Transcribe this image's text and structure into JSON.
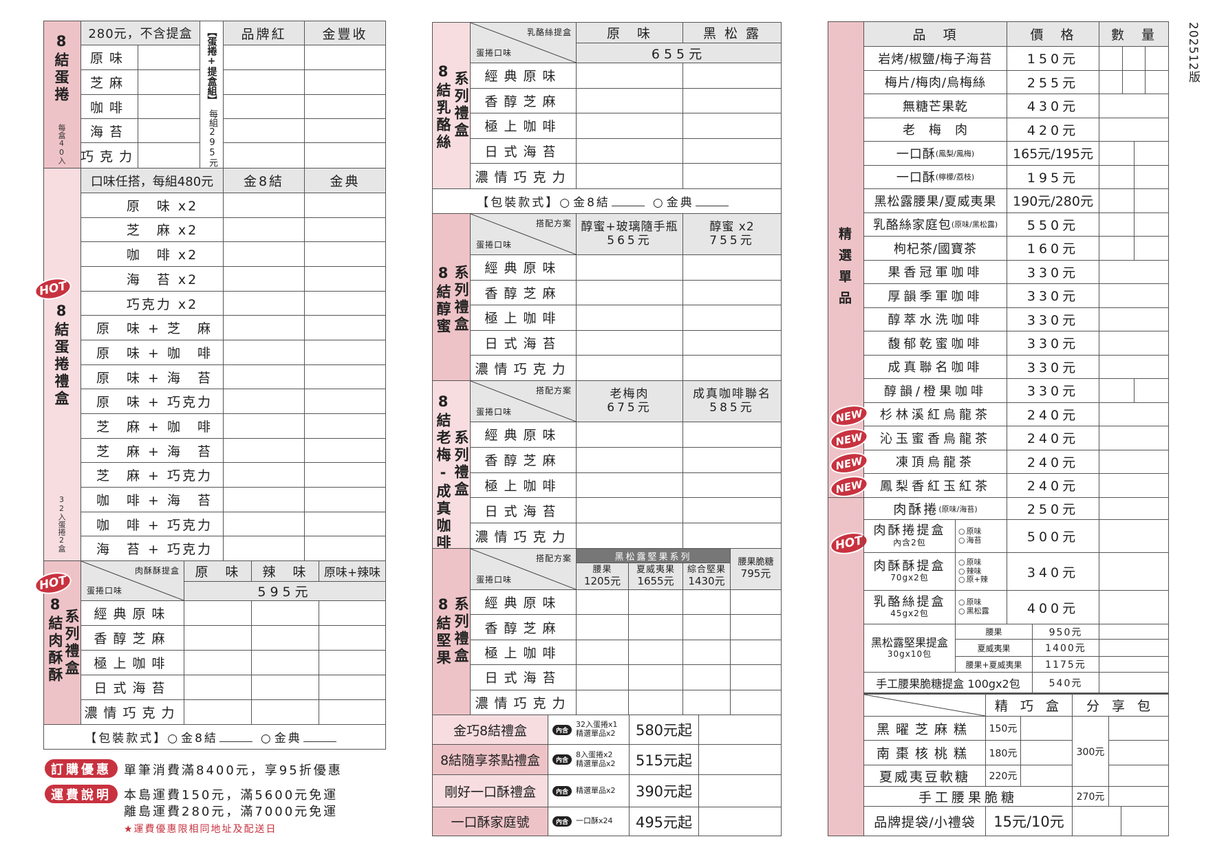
{
  "version": "202512版",
  "colors": {
    "pink_dark": "#eec3c7",
    "pink_light": "#f7dde0",
    "badge_red": "#c8323f",
    "header_grey": "#e6e6e6"
  },
  "eggroll": {
    "label": "8結蛋捲",
    "sub": "每盒40入",
    "price_note": "280元，不含提盒",
    "set_note": "【蛋捲+提盒組】",
    "set_price": "每組295元",
    "columns": [
      "品牌紅",
      "金豐收"
    ],
    "flavors": [
      "原味",
      "芝麻",
      "咖啡",
      "海苔",
      "巧克力"
    ]
  },
  "eggroll_giftbox": {
    "badge": "HOT",
    "label": "8結蛋捲禮盒",
    "sub": "32入蛋捲2盒",
    "header": "口味任搭，每組480元",
    "columns": [
      "金8結",
      "金典"
    ],
    "rows": [
      "原　味 x2",
      "芝　麻 x2",
      "咖　啡 x2",
      "海　苔 x2",
      "巧克力 x2",
      "原　味 + 芝　麻",
      "原　味 + 咖　啡",
      "原　味 + 海　苔",
      "原　味 + 巧克力",
      "芝　麻 + 咖　啡",
      "芝　麻 + 海　苔",
      "芝　麻 + 巧克力",
      "咖　啡 + 海　苔",
      "咖　啡 + 巧克力",
      "海　苔 + 巧克力"
    ]
  },
  "gift_flavors": [
    "經典原味",
    "香醇芝麻",
    "極上咖啡",
    "日式海苔",
    "濃情巧克力"
  ],
  "corner": {
    "flavor": "蛋捲口味",
    "plan": "搭配方案"
  },
  "packaging": {
    "label": "【包裝款式】",
    "options": [
      "金8結",
      "金典"
    ]
  },
  "pastry_box": {
    "badge": "HOT",
    "label": "8結肉酥酥",
    "series": "系列禮盒",
    "corner_top": "肉酥酥提盒",
    "columns": [
      "原　味",
      "辣　味",
      "原味+辣味"
    ],
    "price": "595元"
  },
  "promo": {
    "order_badge": "訂購優惠",
    "order_text": "單筆消費滿8400元，享95折優惠",
    "ship_badge": "運費說明",
    "ship_lines": [
      "本島運費150元，滿5600元免運",
      "離島運費280元，滿7000元免運"
    ],
    "note": "★運費優惠限相同地址及配送日"
  },
  "cheese_box": {
    "label": "8結乳酪絲",
    "series": "系列禮盒",
    "corner_top": "乳酪絲提盒",
    "columns": [
      "原　味",
      "黑 松 露"
    ],
    "price": "655元"
  },
  "honey_box": {
    "label": "8結醇蜜",
    "series": "系列禮盒",
    "columns": [
      {
        "name": "醇蜜+玻璃隨手瓶",
        "price": "565元"
      },
      {
        "name": "醇蜜 x2",
        "price": "755元"
      }
    ]
  },
  "plum_box": {
    "label": "8結老梅-成真咖啡",
    "series": "系列禮盒",
    "columns": [
      {
        "name": "老梅肉",
        "price": "675元"
      },
      {
        "name": "成真咖啡聯名",
        "price": "585元"
      }
    ]
  },
  "nut_box": {
    "label": "8結堅果",
    "series": "系列禮盒",
    "group": "黑松露堅果系列",
    "columns": [
      {
        "name": "腰果",
        "price": "1205元"
      },
      {
        "name": "夏威夷果",
        "price": "1655元"
      },
      {
        "name": "綜合堅果",
        "price": "1430元"
      },
      {
        "name": "腰果脆糖",
        "price": "795元"
      }
    ]
  },
  "gift_sets": [
    {
      "name": "金巧8結禮盒",
      "tag": "內含",
      "contents": [
        "32入蛋捲x1",
        "精選單品x2"
      ],
      "price": "580元起"
    },
    {
      "name": "8結隨享茶點禮盒",
      "tag": "內含",
      "contents": [
        "8入蛋捲x2",
        "精選單品x2"
      ],
      "price": "515元起"
    },
    {
      "name": "剛好一口酥禮盒",
      "tag": "內含",
      "contents": [
        "精選單品x2"
      ],
      "price": "390元起"
    },
    {
      "name": "一口酥家庭號",
      "tag": "內含",
      "contents": [
        "一口酥x24"
      ],
      "price": "495元起"
    }
  ],
  "singles": {
    "label": "精選單品",
    "headers": [
      "品　項",
      "價　格",
      "數　量"
    ],
    "items": [
      {
        "name": "岩烤/椒鹽/梅子海苔",
        "note": "",
        "price": "150元"
      },
      {
        "name": "梅片/梅肉/烏梅絲",
        "note": "",
        "price": "255元"
      },
      {
        "name": "無糖芒果乾",
        "note": "",
        "price": "430元"
      },
      {
        "name": "老　梅　肉",
        "note": "",
        "price": "420元"
      },
      {
        "name": "一口酥",
        "note": "(鳳梨/鳳梅)",
        "price": "165元/195元"
      },
      {
        "name": "一口酥",
        "note": "(檸檬/荔枝)",
        "price": "195元"
      },
      {
        "name": "黑松露腰果/夏威夷果",
        "note": "",
        "price": "190元/280元"
      },
      {
        "name": "乳酪絲家庭包",
        "note": "(原味/黑松露)",
        "price": "550元"
      },
      {
        "name": "枸杞茶/國寶茶",
        "note": "",
        "price": "160元"
      },
      {
        "name": "果香冠軍咖啡",
        "note": "",
        "price": "330元"
      },
      {
        "name": "厚韻季軍咖啡",
        "note": "",
        "price": "330元"
      },
      {
        "name": "醇萃水洗咖啡",
        "note": "",
        "price": "330元"
      },
      {
        "name": "馥郁乾蜜咖啡",
        "note": "",
        "price": "330元"
      },
      {
        "name": "成真聯名咖啡",
        "note": "",
        "price": "330元"
      },
      {
        "name": "醇韻/橙果咖啡",
        "note": "",
        "price": "330元"
      },
      {
        "name": "杉林溪紅烏龍茶",
        "note": "",
        "price": "240元",
        "badge": "NEW"
      },
      {
        "name": "沁玉蜜香烏龍茶",
        "note": "",
        "price": "240元",
        "badge": "NEW"
      },
      {
        "name": "凍頂烏龍茶",
        "note": "",
        "price": "240元",
        "badge": "NEW"
      },
      {
        "name": "鳳梨香紅玉紅茶",
        "note": "",
        "price": "240元",
        "badge": "NEW"
      }
    ]
  },
  "pastries": {
    "badge": "HOT",
    "roll": {
      "name": "肉酥捲",
      "note": "(原味/海苔)",
      "price": "250元"
    },
    "roll_box": {
      "name": "肉酥捲提盒",
      "sub": "內含2包",
      "options": [
        "原味",
        "海苔"
      ],
      "price": "500元"
    },
    "floss_box": {
      "name": "肉酥酥提盒",
      "sub": "70gx2包",
      "options": [
        "原味",
        "辣味",
        "原+辣"
      ],
      "price": "340元"
    },
    "cheese_box": {
      "name": "乳酪絲提盒",
      "sub": "45gx2包",
      "options": [
        "原味",
        "黑松露"
      ],
      "price": "400元"
    },
    "nut_box": {
      "name": "黑松露堅果提盒",
      "sub": "30gx10包",
      "variants": [
        {
          "name": "腰果",
          "price": "950元"
        },
        {
          "name": "夏威夷果",
          "price": "1400元"
        },
        {
          "name": "腰果+夏威夷果",
          "price": "1175元"
        }
      ]
    },
    "brittle_box": {
      "name": "手工腰果脆糖提盒 100gx2包",
      "price": "540元"
    }
  },
  "sweets": {
    "columns": [
      "精 巧 盒",
      "分 享 包"
    ],
    "items": [
      {
        "name": "黑曜芝麻糕",
        "price": "150元"
      },
      {
        "name": "南棗核桃糕",
        "price": "180元"
      },
      {
        "name": "夏威夷豆軟糖",
        "price": "220元"
      }
    ],
    "share_price": "300元",
    "brittle": {
      "name": "手工腰果脆糖",
      "price": "270元"
    },
    "bag": {
      "name": "品牌提袋/小禮袋",
      "price": "15元/10元"
    }
  }
}
